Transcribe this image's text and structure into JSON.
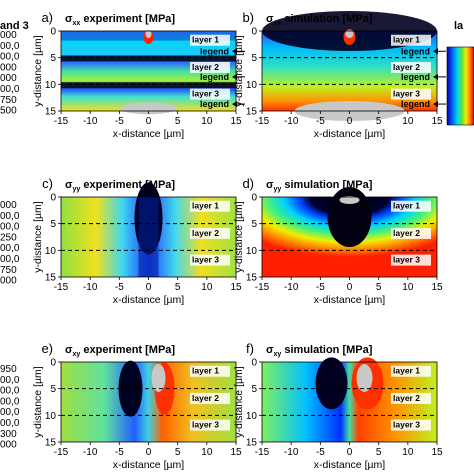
{
  "left_legend": {
    "header": "and 3",
    "group1": [
      "000",
      "00,0",
      "00,0",
      "000",
      "000",
      "00,0",
      "750",
      "500"
    ],
    "group2": [
      "000",
      "00,0",
      "00,0",
      "250",
      "00,0",
      "00,0",
      "750",
      "000"
    ],
    "group3": [
      "950",
      "00,0",
      "00,0",
      "00,0",
      "00,0",
      "00,0",
      "300",
      "000"
    ]
  },
  "right_legend": {
    "header": "la"
  },
  "chart_data": [
    {
      "id": "a",
      "type": "heatmap",
      "panel_label": "a)",
      "title_symbol": "σ",
      "title_sub": "xx",
      "title_rest": " experiment [MPa]",
      "xlabel": "x-distance [µm]",
      "ylabel": "y-distance [µm]",
      "xlim": [
        -15,
        15
      ],
      "ylim": [
        0,
        15
      ],
      "xticks": [
        -15,
        -10,
        -5,
        0,
        5,
        10,
        15
      ],
      "yticks": [
        0,
        5,
        10,
        15
      ],
      "layers": [
        "layer 1",
        "layer 2",
        "layer 3"
      ],
      "layer_boundaries": [
        5,
        10
      ],
      "annotations": [
        "legend",
        "legend",
        "legend"
      ]
    },
    {
      "id": "b",
      "type": "heatmap",
      "panel_label": "b)",
      "title_symbol": "σ",
      "title_sub": "xx",
      "title_rest": " simulation [MPa]",
      "xlabel": "x-distance [µm]",
      "ylabel": "y-distance [µm]",
      "xlim": [
        -15,
        15
      ],
      "ylim": [
        0,
        15
      ],
      "xticks": [
        -15,
        -10,
        -5,
        0,
        5,
        10,
        15
      ],
      "yticks": [
        0,
        5,
        10,
        15
      ],
      "layers": [
        "layer 1",
        "layer 2",
        "layer 3"
      ],
      "layer_boundaries": [
        5,
        10
      ],
      "annotations": [
        "legend",
        "legend",
        "legend"
      ]
    },
    {
      "id": "c",
      "type": "heatmap",
      "panel_label": "c)",
      "title_symbol": "σ",
      "title_sub": "yy",
      "title_rest": " experiment [MPa]",
      "xlabel": "x-distance [µm]",
      "ylabel": "y-distance [µm]",
      "xlim": [
        -15,
        15
      ],
      "ylim": [
        0,
        15
      ],
      "xticks": [
        -15,
        -10,
        -5,
        0,
        5,
        10,
        15
      ],
      "yticks": [
        0,
        5,
        10,
        15
      ],
      "layers": [
        "layer 1",
        "layer 2",
        "layer 3"
      ],
      "layer_boundaries": [
        5,
        10
      ]
    },
    {
      "id": "d",
      "type": "heatmap",
      "panel_label": "d)",
      "title_symbol": "σ",
      "title_sub": "yy",
      "title_rest": " simulation [MPa]",
      "xlabel": "x-distance [µm]",
      "ylabel": "y-distance [µm]",
      "xlim": [
        -15,
        15
      ],
      "ylim": [
        0,
        15
      ],
      "xticks": [
        -15,
        -10,
        -5,
        0,
        5,
        10,
        15
      ],
      "yticks": [
        0,
        5,
        10,
        15
      ],
      "layers": [
        "layer 1",
        "layer 2",
        "layer 3"
      ],
      "layer_boundaries": [
        5,
        10
      ]
    },
    {
      "id": "e",
      "type": "heatmap",
      "panel_label": "e)",
      "title_symbol": "σ",
      "title_sub": "xy",
      "title_rest": " experiment [MPa]",
      "xlabel": "x-distance [µm]",
      "ylabel": "y-distance [µm]",
      "xlim": [
        -15,
        15
      ],
      "ylim": [
        0,
        15
      ],
      "xticks": [
        -15,
        -10,
        -5,
        0,
        5,
        10,
        15
      ],
      "yticks": [
        0,
        5,
        10,
        15
      ],
      "layers": [
        "layer 1",
        "layer 2",
        "layer 3"
      ],
      "layer_boundaries": [
        5,
        10
      ]
    },
    {
      "id": "f",
      "type": "heatmap",
      "panel_label": "f)",
      "title_symbol": "σ",
      "title_sub": "xy",
      "title_rest": " simulation [MPa]",
      "xlabel": "x-distance [µm]",
      "ylabel": "y-distance [µm]",
      "xlim": [
        -15,
        15
      ],
      "ylim": [
        0,
        15
      ],
      "xticks": [
        -15,
        -10,
        -5,
        0,
        5,
        10,
        15
      ],
      "yticks": [
        0,
        5,
        10,
        15
      ],
      "layers": [
        "layer 1",
        "layer 2",
        "layer 3"
      ],
      "layer_boundaries": [
        5,
        10
      ]
    }
  ]
}
